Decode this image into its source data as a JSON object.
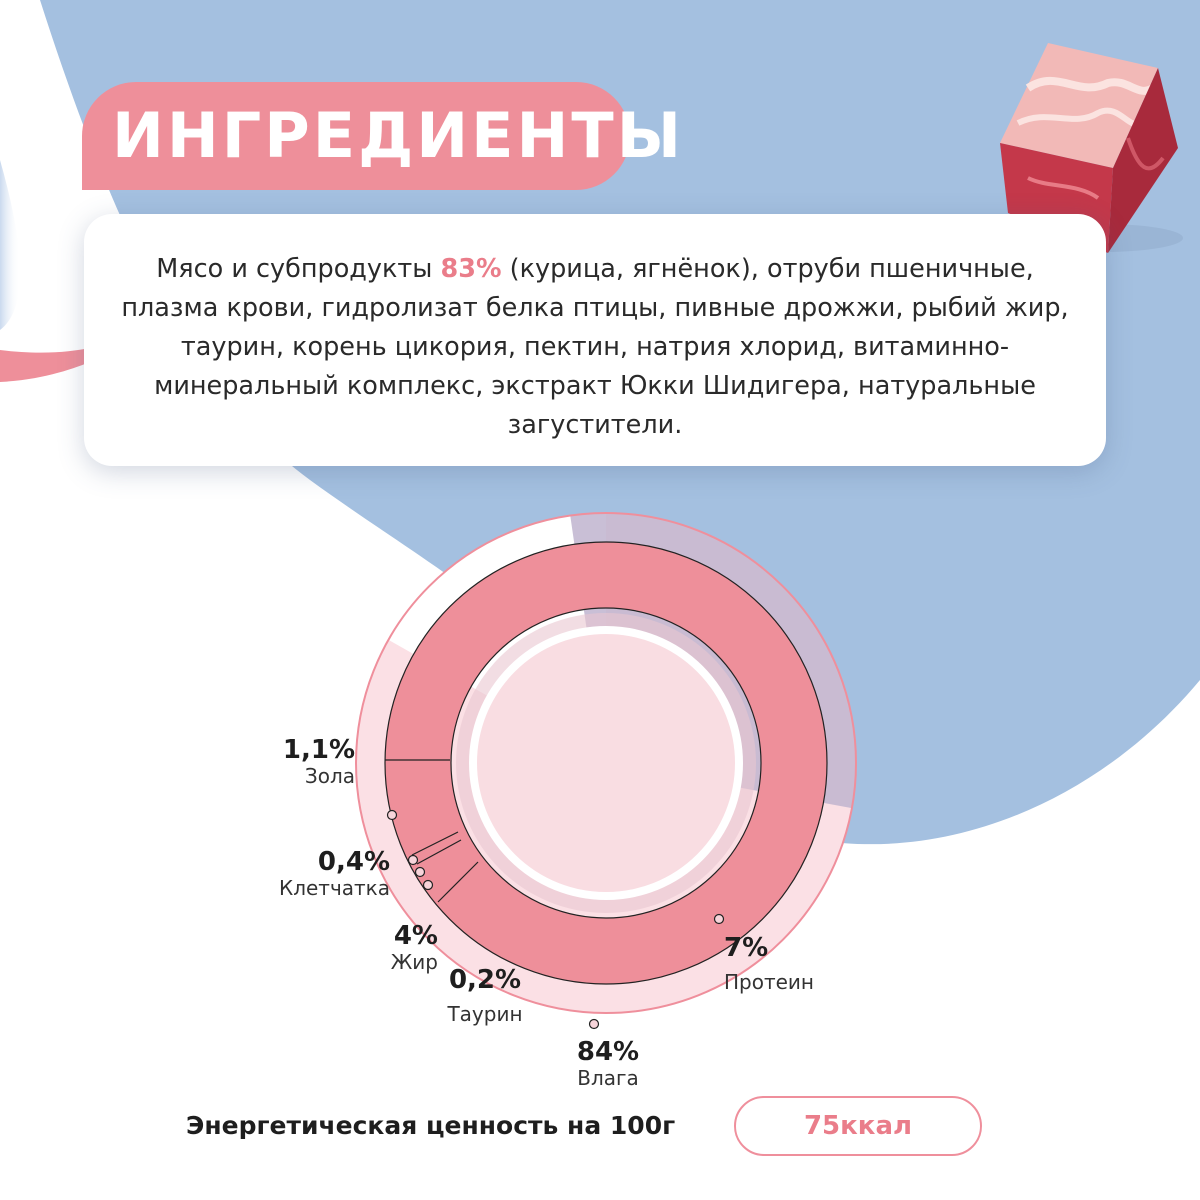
{
  "title": "ИНГРЕДИЕНТЫ",
  "ingredients": {
    "lead": "Мясо и субпродукты ",
    "highlight": "83%",
    "rest": " (курица, ягнёнок), отруби пшеничные, плазма крови, гидролизат белка птицы, пивные дрожжи, рыбий жир, таурин, корень цикория, пектин, натрия хлорид, витаминно-минеральный комплекс, экстракт Юкки Шидигера, натуральные загустители."
  },
  "composition": [
    {
      "value": "1,1%",
      "name": "Зола"
    },
    {
      "value": "0,4%",
      "name": "Клетчатка"
    },
    {
      "value": "4%",
      "name": "Жир"
    },
    {
      "value": "0,2%",
      "name": "Таурин"
    },
    {
      "value": "7%",
      "name": "Протеин"
    },
    {
      "value": "84%",
      "name": "Влага"
    }
  ],
  "energy": {
    "label": "Энергетическая ценность на 100г",
    "value": "75ккал"
  },
  "colors": {
    "accent": "#ee8f9a",
    "blue": "#a4c0e0",
    "pale_pink": "#f7d4da"
  }
}
